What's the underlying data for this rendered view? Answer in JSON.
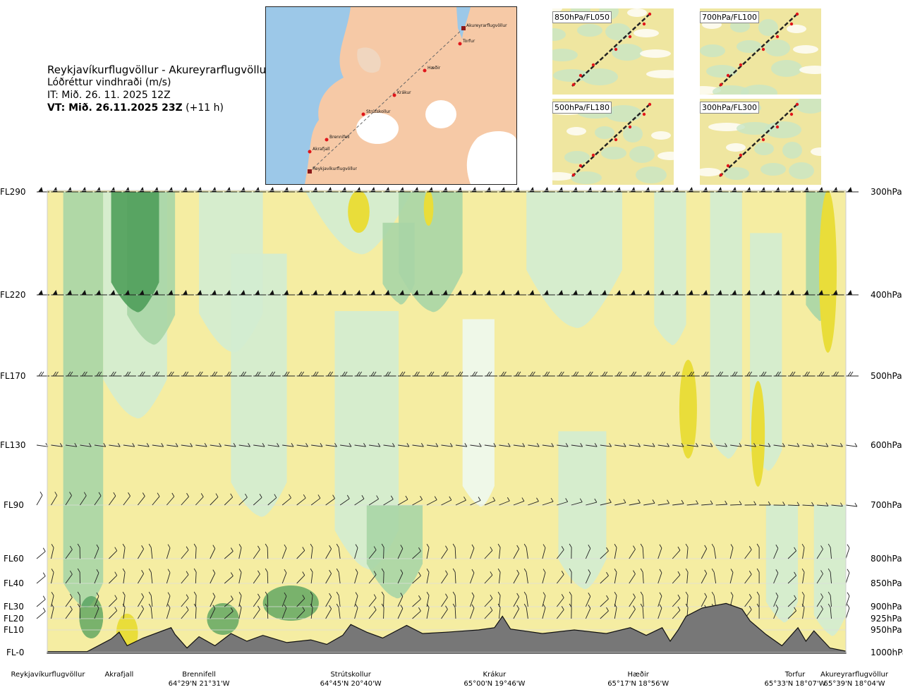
{
  "header": {
    "route": "Reykjavíkurflugvöllur - Akureyrarflugvöllur",
    "variable": "Lóðréttur vindhraði (m/s)",
    "issue_time": "IT: Mið. 26. 11. 2025 12Z",
    "valid_prefix": "VT: Mið. 26.11.2025 23Z",
    "valid_suffix": " (+11 h)"
  },
  "map": {
    "points": [
      "Akureyrarflugvöllur",
      "Torfur",
      "Hæðir",
      "Krákur",
      "Strútskollur",
      "Brennifell",
      "Akrafjall",
      "Reykjavíkurflugvöllur"
    ]
  },
  "panels": [
    {
      "label": "850hPa/FL050"
    },
    {
      "label": "700hPa/FL100"
    },
    {
      "label": "500hPa/FL180"
    },
    {
      "label": "300hPa/FL300"
    }
  ],
  "chart_data": {
    "type": "heatmap",
    "title": "Lóðréttur vindhraði (m/s)",
    "levels_left": [
      "FL290",
      "FL220",
      "FL170",
      "FL130",
      "FL90",
      "FL60",
      "FL40",
      "FL30",
      "FL20",
      "FL10",
      "FL-0"
    ],
    "levels_right": [
      "300hPa",
      "400hPa",
      "500hPa",
      "600hPa",
      "700hPa",
      "800hPa",
      "850hPa",
      "900hPa",
      "925hPa",
      "950hPa",
      "1000hPa"
    ],
    "pressure_hpa": [
      300,
      400,
      500,
      600,
      700,
      800,
      850,
      900,
      925,
      950,
      1000
    ],
    "barb_pressure_hpa": [
      300,
      400,
      500,
      600,
      700,
      800,
      850,
      900,
      925
    ],
    "route_points": [
      {
        "name": "Reykjavíkurflugvöllur",
        "coord": "",
        "dist": 0
      },
      {
        "name": "Akrafjall",
        "coord": "",
        "dist": 0.09
      },
      {
        "name": "Brennifell",
        "coord": "64°29'N 21°31'W",
        "dist": 0.19
      },
      {
        "name": "Strútskollur",
        "coord": "64°45'N 20°40'W",
        "dist": 0.38
      },
      {
        "name": "Krákur",
        "coord": "65°00'N 19°46'W",
        "dist": 0.56
      },
      {
        "name": "Hæðir",
        "coord": "65°17'N 18°56'W",
        "dist": 0.74
      },
      {
        "name": "Torfur",
        "coord": "65°33'N 18°07'W",
        "dist": 0.93
      },
      {
        "name": "Akureyrarflugvöllur",
        "coord": "65°39'N 18°04'W",
        "dist": 1.0
      }
    ],
    "terrain_hpa": [
      [
        0,
        998
      ],
      [
        0.05,
        998
      ],
      [
        0.08,
        970
      ],
      [
        0.09,
        955
      ],
      [
        0.1,
        985
      ],
      [
        0.12,
        968
      ],
      [
        0.155,
        945
      ],
      [
        0.16,
        960
      ],
      [
        0.175,
        990
      ],
      [
        0.19,
        965
      ],
      [
        0.21,
        985
      ],
      [
        0.23,
        958
      ],
      [
        0.25,
        975
      ],
      [
        0.27,
        962
      ],
      [
        0.3,
        978
      ],
      [
        0.33,
        972
      ],
      [
        0.35,
        982
      ],
      [
        0.37,
        962
      ],
      [
        0.38,
        938
      ],
      [
        0.4,
        955
      ],
      [
        0.42,
        968
      ],
      [
        0.45,
        940
      ],
      [
        0.47,
        958
      ],
      [
        0.5,
        955
      ],
      [
        0.54,
        950
      ],
      [
        0.56,
        945
      ],
      [
        0.57,
        920
      ],
      [
        0.58,
        948
      ],
      [
        0.62,
        958
      ],
      [
        0.66,
        950
      ],
      [
        0.7,
        958
      ],
      [
        0.73,
        945
      ],
      [
        0.75,
        962
      ],
      [
        0.77,
        945
      ],
      [
        0.78,
        975
      ],
      [
        0.79,
        950
      ],
      [
        0.8,
        920
      ],
      [
        0.82,
        903
      ],
      [
        0.85,
        893
      ],
      [
        0.87,
        905
      ],
      [
        0.88,
        930
      ],
      [
        0.9,
        960
      ],
      [
        0.92,
        985
      ],
      [
        0.94,
        945
      ],
      [
        0.95,
        975
      ],
      [
        0.96,
        952
      ],
      [
        0.98,
        990
      ],
      [
        1.0,
        997
      ]
    ],
    "color_scale": [
      "#4f9e5a",
      "#a8d5a6",
      "#d3ecd2",
      "#eef8ef",
      "#ffffff",
      "#fbf5c8",
      "#f5eda2",
      "#e9dd3a"
    ]
  }
}
